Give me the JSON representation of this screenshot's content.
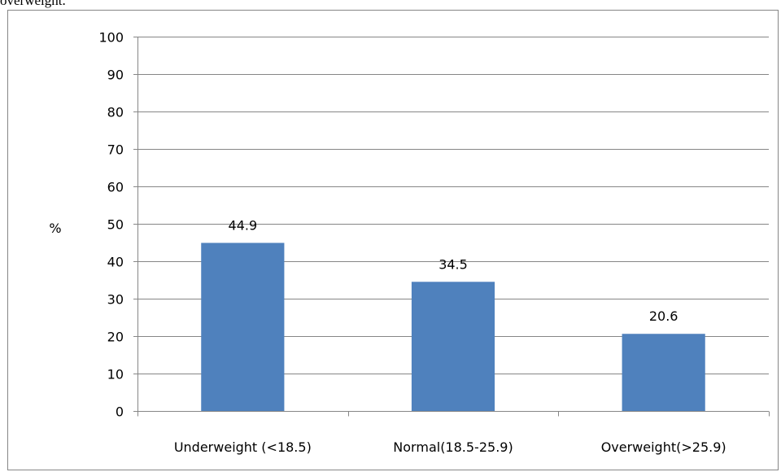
{
  "caption_fragment": "overweight.",
  "chart_data": {
    "type": "bar",
    "categories": [
      "Underweight (<18.5)",
      "Normal(18.5-25.9)",
      "Overweight(>25.9)"
    ],
    "values": [
      44.9,
      34.5,
      20.6
    ],
    "data_labels": [
      "44.9",
      "34.5",
      "20.6"
    ],
    "title": "",
    "xlabel": "",
    "ylabel": "%",
    "ylim": [
      0,
      100
    ],
    "yticks": [
      "0",
      "10",
      "20",
      "30",
      "40",
      "50",
      "60",
      "70",
      "80",
      "90",
      "100"
    ],
    "grid": true,
    "legend": "none",
    "bar_color": "#4F81BD",
    "grid_color": "#868686",
    "frame_color": "#868686"
  }
}
